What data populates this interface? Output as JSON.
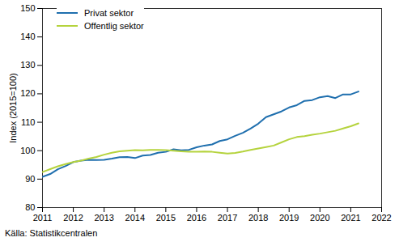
{
  "chart_data": {
    "type": "line",
    "y_label": "Index (2015=100)",
    "caption": "Källa: Statistikcentralen",
    "x": [
      2011,
      2011.25,
      2011.5,
      2011.75,
      2012,
      2012.25,
      2012.5,
      2012.75,
      2013,
      2013.25,
      2013.5,
      2013.75,
      2014,
      2014.25,
      2014.5,
      2014.75,
      2015,
      2015.25,
      2015.5,
      2015.75,
      2016,
      2016.25,
      2016.5,
      2016.75,
      2017,
      2017.25,
      2017.5,
      2017.75,
      2018,
      2018.25,
      2018.5,
      2018.75,
      2019,
      2019.25,
      2019.5,
      2019.75,
      2020,
      2020.25,
      2020.5,
      2020.75,
      2021,
      2021.25
    ],
    "series": [
      {
        "name": "Privat sektor",
        "color": "#1f6fae",
        "values": [
          90.8,
          91.8,
          93.5,
          94.6,
          96.0,
          96.5,
          96.8,
          96.7,
          96.8,
          97.2,
          97.7,
          97.8,
          97.4,
          98.3,
          98.5,
          99.3,
          99.6,
          100.5,
          100.1,
          100.3,
          101.2,
          101.8,
          102.2,
          103.4,
          104.0,
          105.2,
          106.3,
          107.8,
          109.5,
          111.8,
          112.8,
          113.8,
          115.2,
          116.0,
          117.5,
          117.8,
          118.8,
          119.2,
          118.5,
          119.8,
          119.8,
          120.8
        ]
      },
      {
        "name": "Offentlig sektor",
        "color": "#b5d33d",
        "values": [
          92.5,
          93.5,
          94.5,
          95.3,
          96.0,
          96.5,
          97.2,
          97.8,
          98.6,
          99.3,
          99.8,
          100.0,
          100.2,
          100.1,
          100.3,
          100.3,
          100.2,
          100.0,
          99.8,
          99.6,
          99.6,
          99.7,
          99.6,
          99.3,
          99.0,
          99.2,
          99.7,
          100.3,
          100.8,
          101.3,
          101.8,
          102.9,
          104.0,
          104.8,
          105.1,
          105.6,
          106.0,
          106.5,
          107.0,
          107.8,
          108.6,
          109.6
        ]
      }
    ],
    "xlim": [
      2011,
      2022
    ],
    "xticks": [
      2011,
      2012,
      2013,
      2014,
      2015,
      2016,
      2017,
      2018,
      2019,
      2020,
      2021,
      2022
    ],
    "ylim": [
      80,
      150
    ],
    "yticks": [
      80,
      90,
      100,
      110,
      120,
      130,
      140,
      150
    ],
    "grid": false,
    "legend": "upper left"
  }
}
